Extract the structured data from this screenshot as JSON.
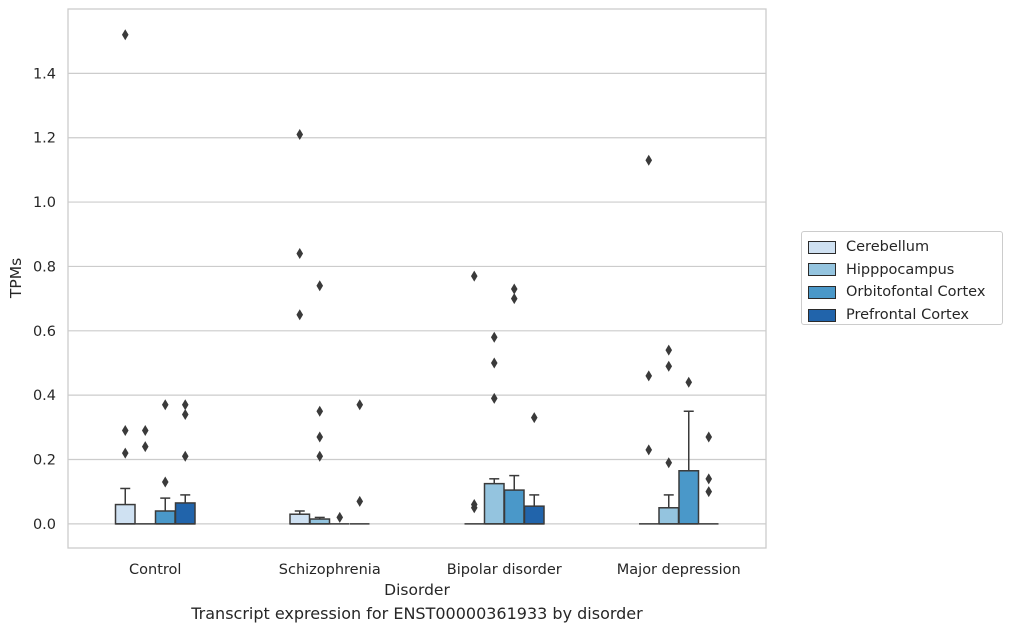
{
  "chart_data": {
    "type": "box",
    "title": "Transcript expression for ENST00000361933 by disorder",
    "xlabel": "Disorder",
    "ylabel": "TPMs",
    "ylim": [
      -0.075,
      1.6
    ],
    "yticks": [
      "0.0",
      "0.2",
      "0.4",
      "0.6",
      "0.8",
      "1.0",
      "1.2",
      "1.4"
    ],
    "grid": "horizontal",
    "legend_position": "right",
    "categories": [
      "Control",
      "Schizophrenia",
      "Bipolar disorder",
      "Major depression"
    ],
    "series": [
      {
        "name": "Cerebellum",
        "color": "#cfe1f2",
        "boxes": [
          {
            "q1": 0.0,
            "median": 0.0,
            "q3": 0.06,
            "whisker_low": 0.0,
            "whisker_high": 0.11,
            "outliers": [
              0.22,
              0.29,
              1.52
            ]
          },
          {
            "q1": 0.0,
            "median": 0.0,
            "q3": 0.03,
            "whisker_low": 0.0,
            "whisker_high": 0.04,
            "outliers": [
              0.65,
              0.84,
              1.21
            ]
          },
          {
            "q1": 0.0,
            "median": 0.0,
            "q3": 0.0,
            "whisker_low": 0.0,
            "whisker_high": 0.0,
            "outliers": [
              0.05,
              0.06,
              0.77
            ]
          },
          {
            "q1": 0.0,
            "median": 0.0,
            "q3": 0.0,
            "whisker_low": 0.0,
            "whisker_high": 0.0,
            "outliers": [
              0.23,
              0.46,
              1.13
            ]
          }
        ]
      },
      {
        "name": "Hipppocampus",
        "color": "#94c4df",
        "boxes": [
          {
            "q1": 0.0,
            "median": 0.0,
            "q3": 0.0,
            "whisker_low": 0.0,
            "whisker_high": 0.0,
            "outliers": [
              0.24,
              0.29
            ]
          },
          {
            "q1": 0.0,
            "median": 0.0,
            "q3": 0.015,
            "whisker_low": 0.0,
            "whisker_high": 0.02,
            "outliers": [
              0.21,
              0.27,
              0.35,
              0.74
            ]
          },
          {
            "q1": 0.0,
            "median": 0.0,
            "q3": 0.125,
            "whisker_low": 0.0,
            "whisker_high": 0.14,
            "outliers": [
              0.39,
              0.5,
              0.58
            ]
          },
          {
            "q1": 0.0,
            "median": 0.0,
            "q3": 0.05,
            "whisker_low": 0.0,
            "whisker_high": 0.09,
            "outliers": [
              0.19,
              0.49,
              0.54
            ]
          }
        ]
      },
      {
        "name": "Orbitofontal Cortex",
        "color": "#4a98c9",
        "boxes": [
          {
            "q1": 0.0,
            "median": 0.0,
            "q3": 0.04,
            "whisker_low": 0.0,
            "whisker_high": 0.08,
            "outliers": [
              0.13,
              0.37
            ]
          },
          {
            "q1": 0.0,
            "median": 0.0,
            "q3": 0.0,
            "whisker_low": 0.0,
            "whisker_high": 0.0,
            "outliers": [
              0.02
            ]
          },
          {
            "q1": 0.0,
            "median": 0.0,
            "q3": 0.105,
            "whisker_low": 0.0,
            "whisker_high": 0.15,
            "outliers": [
              0.7,
              0.73
            ]
          },
          {
            "q1": 0.0,
            "median": 0.0,
            "q3": 0.165,
            "whisker_low": 0.0,
            "whisker_high": 0.35,
            "outliers": [
              0.44
            ]
          }
        ]
      },
      {
        "name": "Prefrontal Cortex",
        "color": "#2164ab",
        "boxes": [
          {
            "q1": 0.0,
            "median": 0.0,
            "q3": 0.065,
            "whisker_low": 0.0,
            "whisker_high": 0.09,
            "outliers": [
              0.21,
              0.34,
              0.37
            ]
          },
          {
            "q1": 0.0,
            "median": 0.0,
            "q3": 0.0,
            "whisker_low": 0.0,
            "whisker_high": 0.0,
            "outliers": [
              0.07,
              0.37
            ]
          },
          {
            "q1": 0.0,
            "median": 0.0,
            "q3": 0.055,
            "whisker_low": 0.0,
            "whisker_high": 0.09,
            "outliers": [
              0.33
            ]
          },
          {
            "q1": 0.0,
            "median": 0.0,
            "q3": 0.0,
            "whisker_low": 0.0,
            "whisker_high": 0.0,
            "outliers": [
              0.1,
              0.14,
              0.27
            ]
          }
        ]
      }
    ]
  }
}
